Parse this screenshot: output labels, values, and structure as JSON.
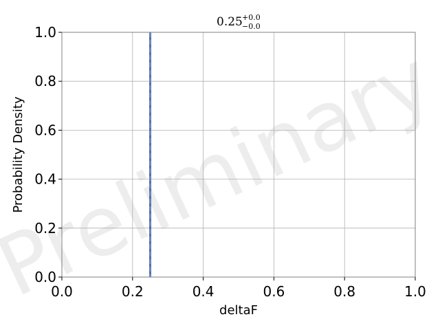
{
  "chart_data": {
    "type": "line",
    "title": {
      "value": "0.25",
      "upper": "+0.0",
      "lower": "−0.0"
    },
    "xlabel": "deltaF",
    "ylabel": "Probability Density",
    "xlim": [
      0.0,
      1.0
    ],
    "ylim": [
      0.0,
      1.0
    ],
    "xticks": [
      "0.0",
      "0.2",
      "0.4",
      "0.6",
      "0.8",
      "1.0"
    ],
    "yticks": [
      "0.0",
      "0.2",
      "0.4",
      "0.6",
      "0.8",
      "1.0"
    ],
    "grid": true,
    "vlines": [
      {
        "x": 0.25,
        "style": "solid",
        "color": "#4c72b0"
      },
      {
        "x": 0.25,
        "style": "dashed",
        "color": "#8c8fbf"
      }
    ],
    "watermark": "Preliminary",
    "colors": {
      "line": "#4c72b0",
      "dashed": "#8c8fbf",
      "grid": "#b0b0b0",
      "watermark": "#d9d9d9"
    }
  }
}
